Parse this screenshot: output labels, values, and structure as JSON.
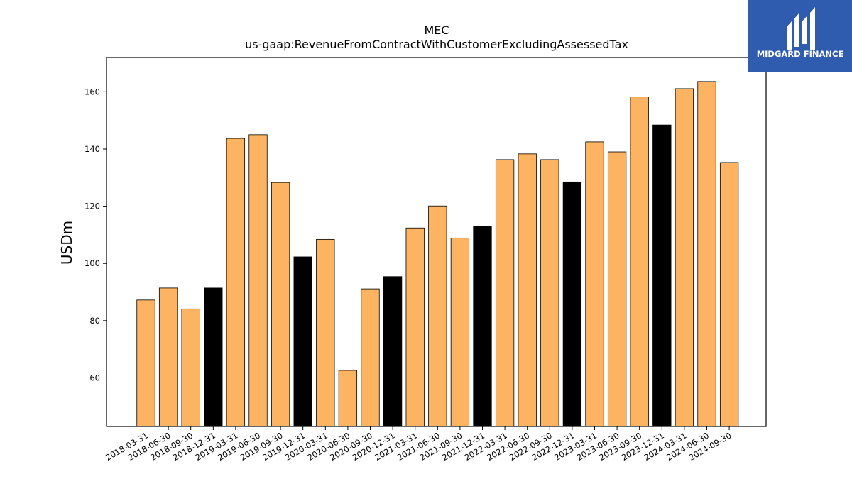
{
  "brand": {
    "name": "MIDGARD FINANCE",
    "logo_color": "#2f5cae",
    "icon": "midgard-logo-icon"
  },
  "chart_data": {
    "type": "bar",
    "title": "MEC",
    "subtitle": "us-gaap:RevenueFromContractWithCustomerExcludingAssessedTax",
    "xlabel": "",
    "ylabel": "USDm",
    "ylim": [
      43,
      172
    ],
    "yticks": [
      60,
      80,
      100,
      120,
      140,
      160
    ],
    "grid": false,
    "colors": {
      "quarter": "#fdb462",
      "year_end": "#000000",
      "edge": "#000000"
    },
    "categories": [
      "2018-03-31",
      "2018-06-30",
      "2018-09-30",
      "2018-12-31",
      "2019-03-31",
      "2019-06-30",
      "2019-09-30",
      "2019-12-31",
      "2020-03-31",
      "2020-06-30",
      "2020-09-30",
      "2020-12-31",
      "2021-03-31",
      "2021-06-30",
      "2021-09-30",
      "2021-12-31",
      "2022-03-31",
      "2022-06-30",
      "2022-09-30",
      "2022-12-31",
      "2023-03-31",
      "2023-06-30",
      "2023-09-30",
      "2023-12-31",
      "2024-03-31",
      "2024-06-30",
      "2024-09-30"
    ],
    "values": [
      87.2,
      91.4,
      84.1,
      91.4,
      143.7,
      145.0,
      128.3,
      102.3,
      108.4,
      62.6,
      91.1,
      95.4,
      112.4,
      120.1,
      108.9,
      112.9,
      136.3,
      138.3,
      136.3,
      128.5,
      142.5,
      139.0,
      158.2,
      148.4,
      161.1,
      163.6,
      135.3
    ]
  }
}
